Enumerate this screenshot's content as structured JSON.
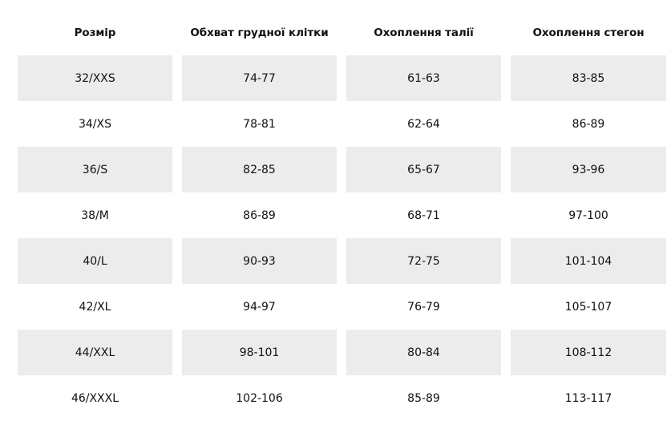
{
  "table": {
    "headers": [
      "Розмір",
      "Обхват грудної клітки",
      "Охоплення талії",
      "Охоплення стегон"
    ],
    "rows": [
      [
        "32/XXS",
        "74-77",
        "61-63",
        "83-85"
      ],
      [
        "34/XS",
        "78-81",
        "62-64",
        "86-89"
      ],
      [
        "36/S",
        "82-85",
        "65-67",
        "93-96"
      ],
      [
        "38/M",
        "86-89",
        "68-71",
        "97-100"
      ],
      [
        "40/L",
        "90-93",
        "72-75",
        "101-104"
      ],
      [
        "42/XL",
        "94-97",
        "76-79",
        "105-107"
      ],
      [
        "44/XXL",
        "98-101",
        "80-84",
        "108-112"
      ],
      [
        "46/XXXL",
        "102-106",
        "85-89",
        "113-117"
      ]
    ]
  },
  "colors": {
    "shaded_row_background": "#ececec",
    "text": "#111111",
    "background": "#ffffff"
  }
}
